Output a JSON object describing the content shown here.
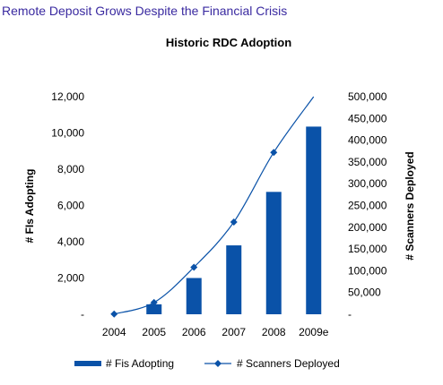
{
  "headline": "Remote Deposit Grows Despite the Financial Crisis",
  "chart_data": {
    "type": "bar",
    "title": "Historic RDC  Adoption",
    "categories": [
      "2004",
      "2005",
      "2006",
      "2007",
      "2008",
      "2009e"
    ],
    "ylabel": "# FIs Adopting",
    "y2label": "# Scanners Deployed",
    "ylim": [
      0,
      12000
    ],
    "y2lim": [
      0,
      500000
    ],
    "yticks": [
      "-",
      "2,000",
      "4,000",
      "6,000",
      "8,000",
      "10,000",
      "12,000"
    ],
    "y2ticks": [
      "-",
      "50,000",
      "100,000",
      "150,000",
      "200,000",
      "250,000",
      "300,000",
      "350,000",
      "400,000",
      "450,000",
      "500,000"
    ],
    "series": [
      {
        "name": "# Fis Adopting",
        "type": "bar",
        "axis": "left",
        "color": "#0a52a8",
        "values": [
          0,
          550,
          2000,
          3800,
          6750,
          10350
        ]
      },
      {
        "name": "# Scanners Deployed",
        "type": "line",
        "axis": "right",
        "color": "#0a52a8",
        "marker": "diamond",
        "values": [
          500,
          27000,
          108000,
          212000,
          372000,
          500000
        ]
      }
    ],
    "grid": false,
    "legend": "bottom"
  }
}
